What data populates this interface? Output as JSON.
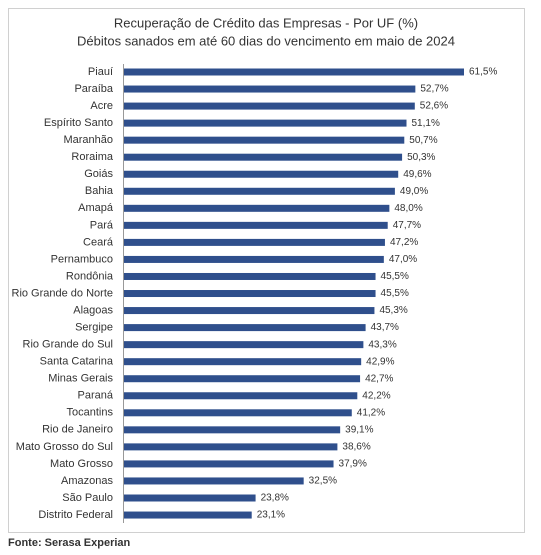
{
  "chart_data": {
    "type": "bar",
    "orientation": "horizontal",
    "title": "Recuperação de Crédito das Empresas - Por UF (%)",
    "subtitle": "Débitos sanados em até 60 dias do vencimento em maio de 2024",
    "categories": [
      "Piauí",
      "Paraíba",
      "Acre",
      "Espírito Santo",
      "Maranhão",
      "Roraima",
      "Goiás",
      "Bahia",
      "Amapá",
      "Pará",
      "Ceará",
      "Pernambuco",
      "Rondônia",
      "Rio Grande do Norte",
      "Alagoas",
      "Sergipe",
      "Rio Grande do Sul",
      "Santa Catarina",
      "Minas Gerais",
      "Paraná",
      "Tocantins",
      "Rio de Janeiro",
      "Mato Grosso do Sul",
      "Mato Grosso",
      "Amazonas",
      "São Paulo",
      "Distrito Federal"
    ],
    "values": [
      61.5,
      52.7,
      52.6,
      51.1,
      50.7,
      50.3,
      49.6,
      49.0,
      48.0,
      47.7,
      47.2,
      47.0,
      45.5,
      45.5,
      45.3,
      43.7,
      43.3,
      42.9,
      42.7,
      42.2,
      41.2,
      39.1,
      38.6,
      37.9,
      32.5,
      23.8,
      23.1
    ],
    "value_labels": [
      "61,5%",
      "52,7%",
      "52,6%",
      "51,1%",
      "50,7%",
      "50,3%",
      "49,6%",
      "49,0%",
      "48,0%",
      "47,7%",
      "47,2%",
      "47,0%",
      "45,5%",
      "45,5%",
      "45,3%",
      "43,7%",
      "43,3%",
      "42,9%",
      "42,7%",
      "42,2%",
      "41,2%",
      "39,1%",
      "38,6%",
      "37,9%",
      "32,5%",
      "23,8%",
      "23,1%"
    ],
    "color": "#2f4f8c",
    "source": "Fonte: Serasa Experian"
  }
}
